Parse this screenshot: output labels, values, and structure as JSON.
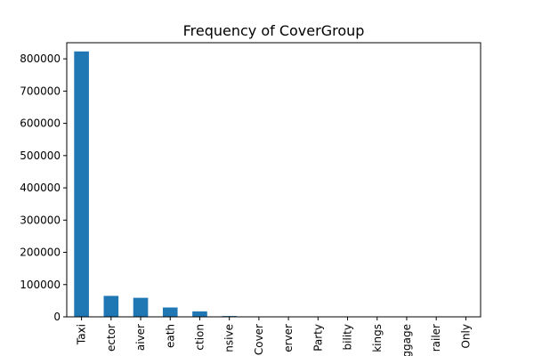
{
  "chart_data": {
    "type": "bar",
    "title": "Frequency of CoverGroup",
    "xlabel": "",
    "ylabel": "",
    "categories": [
      "Motor Comprehensive Taxi",
      "Protector",
      "Waiver",
      "Death",
      "Protection",
      "Comprehensive",
      "Cover",
      "Server",
      "Party",
      "Liability",
      "Bookings",
      "Luggage",
      "Trailer",
      "Only"
    ],
    "category_tick_labels": [
      "Taxi",
      "ector",
      "aiver",
      "eath",
      "ction",
      "nsive",
      "Cover",
      "erver",
      "Party",
      "bility",
      "kings",
      "ggage",
      "railer",
      "Only"
    ],
    "values": [
      823000,
      65000,
      59000,
      29000,
      17000,
      2500,
      300,
      200,
      150,
      100,
      80,
      60,
      40,
      20
    ],
    "ylim": [
      0,
      850000
    ],
    "yticks": [
      0,
      100000,
      200000,
      300000,
      400000,
      500000,
      600000,
      700000,
      800000
    ],
    "grid": false,
    "bar_color": "#1f77b4"
  }
}
